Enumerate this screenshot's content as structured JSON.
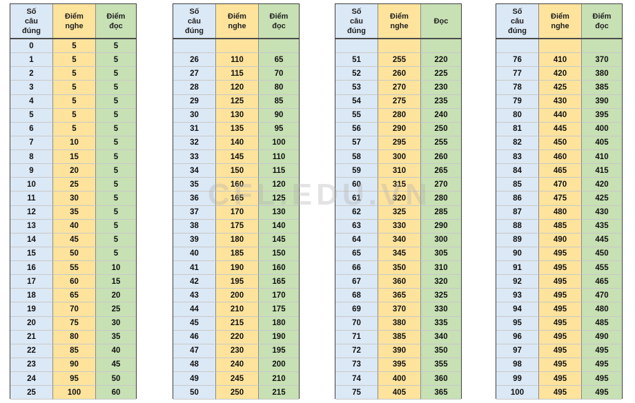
{
  "watermark": "CFL.EDU.VN",
  "tables": [
    {
      "headers": [
        "Số\ncâu\nđúng",
        "Điểm\nnghe",
        "Điểm\nđọc"
      ],
      "rows": [
        [
          "0",
          "5",
          "5"
        ],
        [
          "1",
          "5",
          "5"
        ],
        [
          "2",
          "5",
          "5"
        ],
        [
          "3",
          "5",
          "5"
        ],
        [
          "4",
          "5",
          "5"
        ],
        [
          "5",
          "5",
          "5"
        ],
        [
          "6",
          "5",
          "5"
        ],
        [
          "7",
          "10",
          "5"
        ],
        [
          "8",
          "15",
          "5"
        ],
        [
          "9",
          "20",
          "5"
        ],
        [
          "10",
          "25",
          "5"
        ],
        [
          "11",
          "30",
          "5"
        ],
        [
          "12",
          "35",
          "5"
        ],
        [
          "13",
          "40",
          "5"
        ],
        [
          "14",
          "45",
          "5"
        ],
        [
          "15",
          "50",
          "5"
        ],
        [
          "16",
          "55",
          "10"
        ],
        [
          "17",
          "60",
          "15"
        ],
        [
          "18",
          "65",
          "20"
        ],
        [
          "19",
          "70",
          "25"
        ],
        [
          "20",
          "75",
          "30"
        ],
        [
          "21",
          "80",
          "35"
        ],
        [
          "22",
          "85",
          "40"
        ],
        [
          "23",
          "90",
          "45"
        ],
        [
          "24",
          "95",
          "50"
        ],
        [
          "25",
          "100",
          "60"
        ]
      ]
    },
    {
      "headers": [
        "Số\ncâu\nđúng",
        "Điểm\nnghe",
        "Điểm\nđọc"
      ],
      "rows": [
        [
          "",
          "",
          ""
        ],
        [
          "26",
          "110",
          "65"
        ],
        [
          "27",
          "115",
          "70"
        ],
        [
          "28",
          "120",
          "80"
        ],
        [
          "29",
          "125",
          "85"
        ],
        [
          "30",
          "130",
          "90"
        ],
        [
          "31",
          "135",
          "95"
        ],
        [
          "32",
          "140",
          "100"
        ],
        [
          "33",
          "145",
          "110"
        ],
        [
          "34",
          "150",
          "115"
        ],
        [
          "35",
          "160",
          "120"
        ],
        [
          "36",
          "165",
          "125"
        ],
        [
          "37",
          "170",
          "130"
        ],
        [
          "38",
          "175",
          "140"
        ],
        [
          "39",
          "180",
          "145"
        ],
        [
          "40",
          "185",
          "150"
        ],
        [
          "41",
          "190",
          "160"
        ],
        [
          "42",
          "195",
          "165"
        ],
        [
          "43",
          "200",
          "170"
        ],
        [
          "44",
          "210",
          "175"
        ],
        [
          "45",
          "215",
          "180"
        ],
        [
          "46",
          "220",
          "190"
        ],
        [
          "47",
          "230",
          "195"
        ],
        [
          "48",
          "240",
          "200"
        ],
        [
          "49",
          "245",
          "210"
        ],
        [
          "50",
          "250",
          "215"
        ]
      ]
    },
    {
      "headers": [
        "Số\ncâu\nđúng",
        "Điểm\nnghe",
        "Đọc"
      ],
      "rows": [
        [
          "",
          "",
          ""
        ],
        [
          "51",
          "255",
          "220"
        ],
        [
          "52",
          "260",
          "225"
        ],
        [
          "53",
          "270",
          "230"
        ],
        [
          "54",
          "275",
          "235"
        ],
        [
          "55",
          "280",
          "240"
        ],
        [
          "56",
          "290",
          "250"
        ],
        [
          "57",
          "295",
          "255"
        ],
        [
          "58",
          "300",
          "260"
        ],
        [
          "59",
          "310",
          "265"
        ],
        [
          "60",
          "315",
          "270"
        ],
        [
          "61",
          "320",
          "280"
        ],
        [
          "62",
          "325",
          "285"
        ],
        [
          "63",
          "330",
          "290"
        ],
        [
          "64",
          "340",
          "300"
        ],
        [
          "65",
          "345",
          "305"
        ],
        [
          "66",
          "350",
          "310"
        ],
        [
          "67",
          "360",
          "320"
        ],
        [
          "68",
          "365",
          "325"
        ],
        [
          "69",
          "370",
          "330"
        ],
        [
          "70",
          "380",
          "335"
        ],
        [
          "71",
          "385",
          "340"
        ],
        [
          "72",
          "390",
          "350"
        ],
        [
          "73",
          "395",
          "355"
        ],
        [
          "74",
          "400",
          "360"
        ],
        [
          "75",
          "405",
          "365"
        ]
      ]
    },
    {
      "headers": [
        "Số\ncâu\nđúng",
        "Điểm\nnghe",
        "Điểm\nđọc"
      ],
      "rows": [
        [
          "",
          "",
          ""
        ],
        [
          "76",
          "410",
          "370"
        ],
        [
          "77",
          "420",
          "380"
        ],
        [
          "78",
          "425",
          "385"
        ],
        [
          "79",
          "430",
          "390"
        ],
        [
          "80",
          "440",
          "395"
        ],
        [
          "81",
          "445",
          "400"
        ],
        [
          "82",
          "450",
          "405"
        ],
        [
          "83",
          "460",
          "410"
        ],
        [
          "84",
          "465",
          "415"
        ],
        [
          "85",
          "470",
          "420"
        ],
        [
          "86",
          "475",
          "425"
        ],
        [
          "87",
          "480",
          "430"
        ],
        [
          "88",
          "485",
          "435"
        ],
        [
          "89",
          "490",
          "445"
        ],
        [
          "90",
          "495",
          "450"
        ],
        [
          "91",
          "495",
          "455"
        ],
        [
          "92",
          "495",
          "465"
        ],
        [
          "93",
          "495",
          "470"
        ],
        [
          "94",
          "495",
          "480"
        ],
        [
          "95",
          "495",
          "485"
        ],
        [
          "96",
          "495",
          "490"
        ],
        [
          "97",
          "495",
          "495"
        ],
        [
          "98",
          "495",
          "495"
        ],
        [
          "99",
          "495",
          "495"
        ],
        [
          "100",
          "495",
          "495"
        ]
      ]
    }
  ]
}
